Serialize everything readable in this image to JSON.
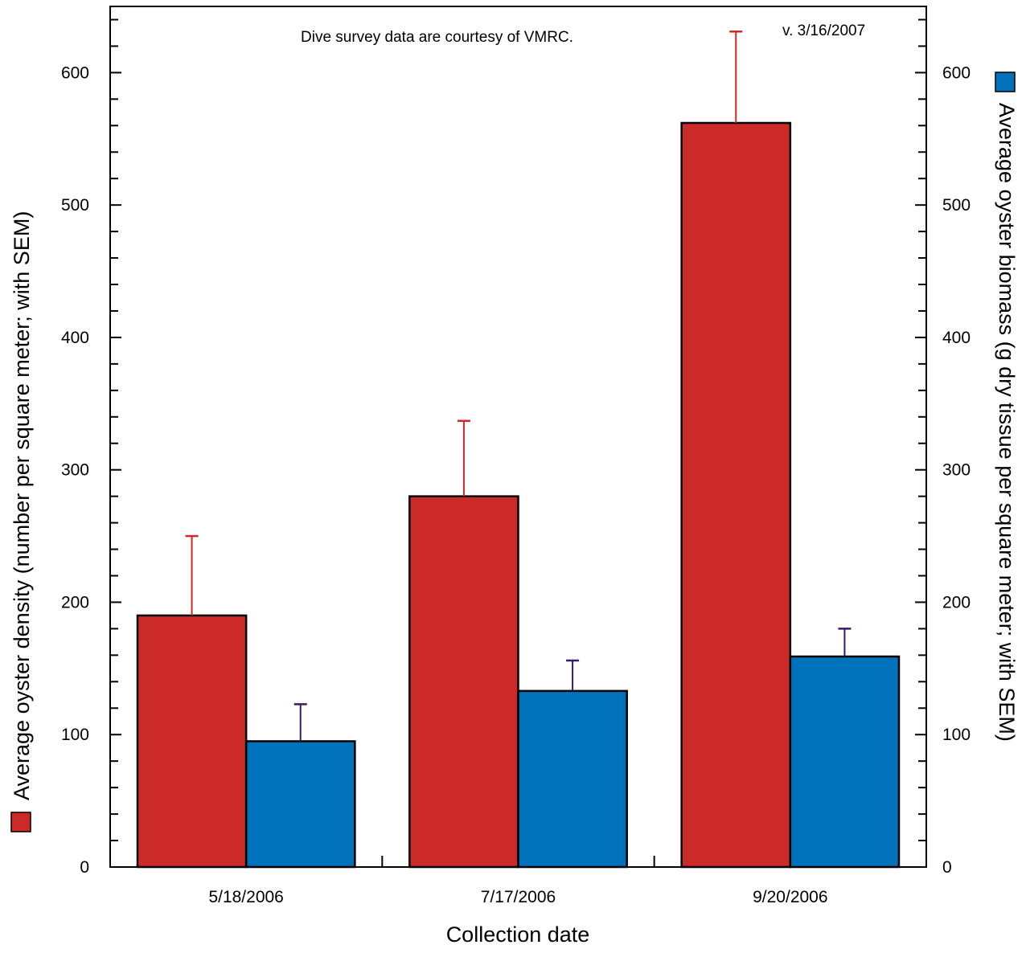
{
  "chart_data": {
    "type": "bar",
    "xlabel": "Collection date",
    "ylabel": "Average oyster density (number per square meter; with SEM)",
    "y2label": "Average oyster biomass (g dry tissue per square meter; with SEM)",
    "annotations": {
      "credit": "Dive survey data are courtesy of VMRC.",
      "version": "v. 3/16/2007"
    },
    "categories": [
      "5/18/2006",
      "7/17/2006",
      "9/20/2006"
    ],
    "ylim": [
      0,
      650
    ],
    "y2lim": [
      0,
      650
    ],
    "yticks": [
      0,
      100,
      200,
      300,
      400,
      500,
      600
    ],
    "y2ticks": [
      0,
      100,
      200,
      300,
      400,
      500,
      600
    ],
    "grid": false,
    "series": [
      {
        "axis": "left",
        "color": "#cc2929",
        "error_color": "#cc2929",
        "values": [
          190,
          280,
          562
        ],
        "sem": [
          60,
          57,
          69
        ]
      },
      {
        "axis": "right",
        "color": "#0072bb",
        "error_color": "#3a1a66",
        "values": [
          95,
          133,
          159
        ],
        "sem": [
          28,
          23,
          21
        ]
      }
    ]
  }
}
